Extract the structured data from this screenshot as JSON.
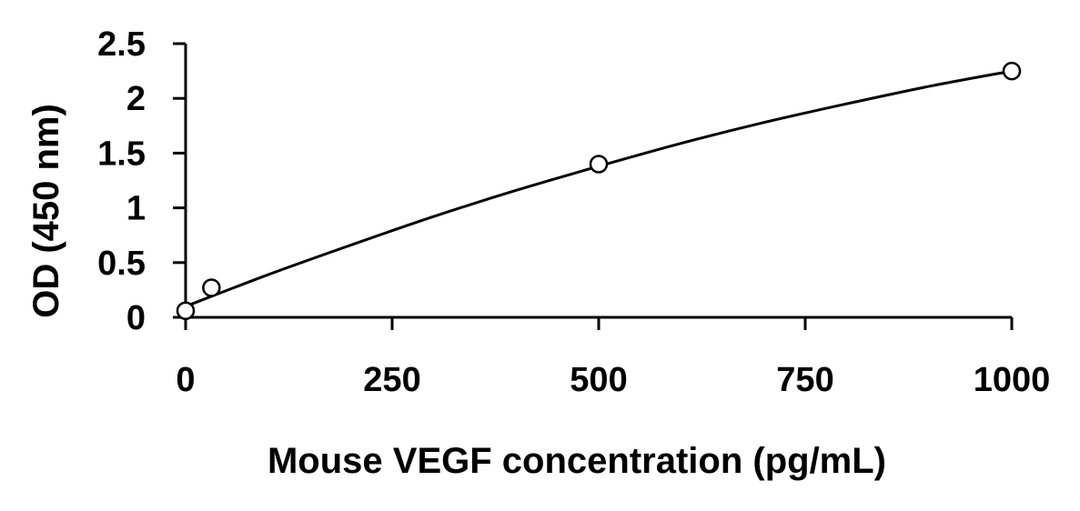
{
  "chart_data": {
    "type": "scatter",
    "title": "",
    "xlabel": "Mouse VEGF concentration (pg/mL)",
    "ylabel": "OD (450 nm)",
    "xlim": [
      0,
      1000
    ],
    "ylim": [
      0,
      2.5
    ],
    "x_ticks": [
      0,
      250,
      500,
      750,
      1000
    ],
    "x_tick_labels": [
      "0",
      "250",
      "500",
      "750",
      "1000"
    ],
    "y_ticks": [
      0,
      0.5,
      1,
      1.5,
      2,
      2.5
    ],
    "y_tick_labels": [
      "0",
      "0.5",
      "1",
      "1.5",
      "2",
      "2.5"
    ],
    "grid": false,
    "legend": "none",
    "series": [
      {
        "x": [
          0,
          31.25,
          500,
          1000
        ],
        "y": [
          0.06,
          0.27,
          1.4,
          2.25
        ],
        "marker": "open-circle",
        "color": "#000000"
      }
    ],
    "fit_curve": {
      "x": [
        0,
        100,
        200,
        300,
        400,
        500,
        600,
        700,
        800,
        900,
        1000
      ],
      "y": [
        0.1,
        0.39,
        0.66,
        0.92,
        1.16,
        1.38,
        1.59,
        1.78,
        1.95,
        2.11,
        2.25
      ]
    }
  }
}
